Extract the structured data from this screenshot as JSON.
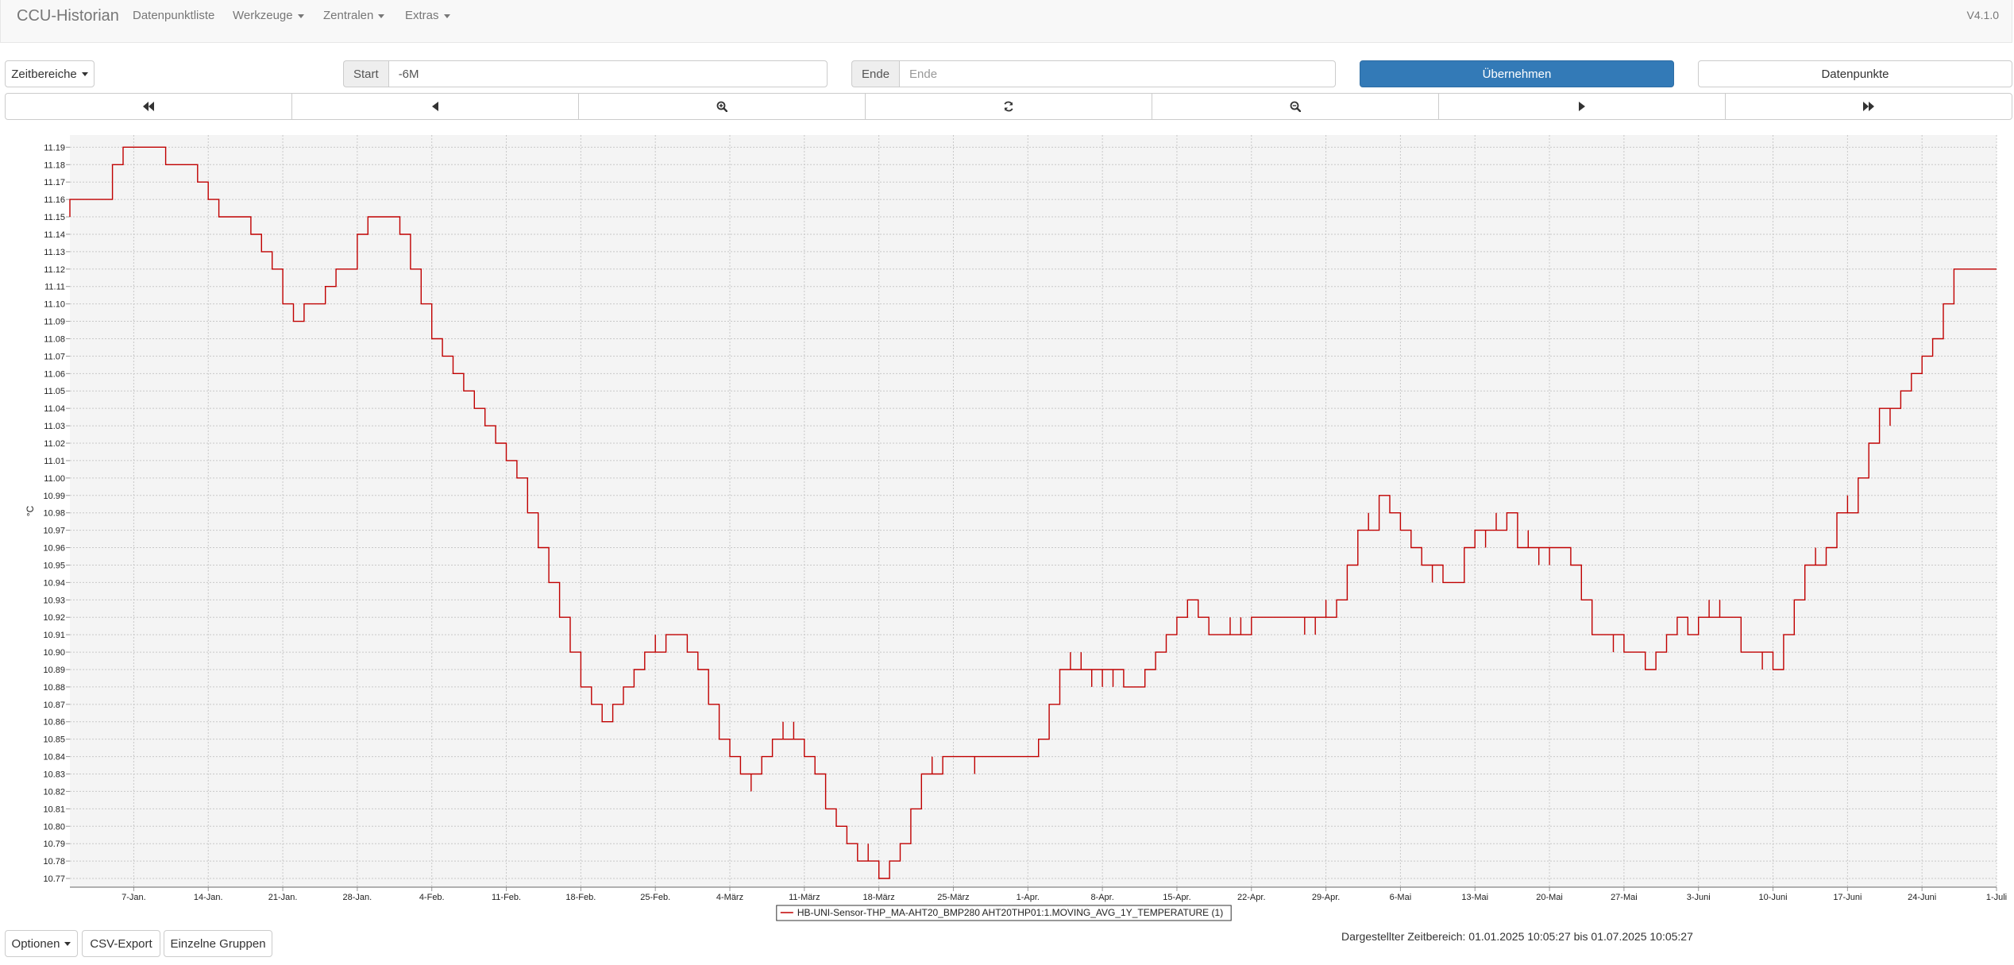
{
  "navbar": {
    "brand": "CCU-Historian",
    "items": [
      "Datenpunktliste",
      "Werkzeuge",
      "Zentralen",
      "Extras"
    ],
    "version": "V4.1.0"
  },
  "toolbar": {
    "zeitbereiche_label": "Zeitbereiche",
    "start_label": "Start",
    "start_value": "-6M",
    "ende_label": "Ende",
    "ende_placeholder": "Ende",
    "apply_label": "Übernehmen",
    "datapoints_label": "Datenpunkte"
  },
  "navigation_icons": [
    "fast-backward-icon",
    "step-backward-icon",
    "zoom-in-icon",
    "refresh-icon",
    "zoom-out-icon",
    "step-forward-icon",
    "fast-forward-icon"
  ],
  "colors": {
    "series": "#c00000",
    "primary": "#337ab7",
    "plot_background": "#f4f4f4"
  },
  "chart_data": {
    "type": "line",
    "step": true,
    "ylabel": "°C",
    "ylim": [
      10.765,
      11.197
    ],
    "yticks": [
      10.77,
      10.78,
      10.79,
      10.8,
      10.81,
      10.82,
      10.83,
      10.84,
      10.85,
      10.86,
      10.87,
      10.88,
      10.89,
      10.9,
      10.91,
      10.92,
      10.93,
      10.94,
      10.95,
      10.96,
      10.97,
      10.98,
      10.99,
      11.0,
      11.01,
      11.02,
      11.03,
      11.04,
      11.05,
      11.06,
      11.07,
      11.08,
      11.09,
      11.1,
      11.11,
      11.12,
      11.13,
      11.14,
      11.15,
      11.16,
      11.17,
      11.18,
      11.19
    ],
    "xlim": [
      "2025-01-01",
      "2025-07-01"
    ],
    "xticks": [
      {
        "date": "2025-01-07",
        "label": "7-Jan."
      },
      {
        "date": "2025-01-14",
        "label": "14-Jan."
      },
      {
        "date": "2025-01-21",
        "label": "21-Jan."
      },
      {
        "date": "2025-01-28",
        "label": "28-Jan."
      },
      {
        "date": "2025-02-04",
        "label": "4-Feb."
      },
      {
        "date": "2025-02-11",
        "label": "11-Feb."
      },
      {
        "date": "2025-02-18",
        "label": "18-Feb."
      },
      {
        "date": "2025-02-25",
        "label": "25-Feb."
      },
      {
        "date": "2025-03-04",
        "label": "4-März"
      },
      {
        "date": "2025-03-11",
        "label": "11-März"
      },
      {
        "date": "2025-03-18",
        "label": "18-März"
      },
      {
        "date": "2025-03-25",
        "label": "25-März"
      },
      {
        "date": "2025-04-01",
        "label": "1-Apr."
      },
      {
        "date": "2025-04-08",
        "label": "8-Apr."
      },
      {
        "date": "2025-04-15",
        "label": "15-Apr."
      },
      {
        "date": "2025-04-22",
        "label": "22-Apr."
      },
      {
        "date": "2025-04-29",
        "label": "29-Apr."
      },
      {
        "date": "2025-05-06",
        "label": "6-Mai"
      },
      {
        "date": "2025-05-13",
        "label": "13-Mai"
      },
      {
        "date": "2025-05-20",
        "label": "20-Mai"
      },
      {
        "date": "2025-05-27",
        "label": "27-Mai"
      },
      {
        "date": "2025-06-03",
        "label": "3-Juni"
      },
      {
        "date": "2025-06-10",
        "label": "10-Juni"
      },
      {
        "date": "2025-06-17",
        "label": "17-Juni"
      },
      {
        "date": "2025-06-24",
        "label": "24-Juni"
      },
      {
        "date": "2025-07-01",
        "label": "1-Juli"
      }
    ],
    "grid": true,
    "legend_position": "bottom-center",
    "series": [
      {
        "name": "HB-UNI-Sensor-THP_MA-AHT20_BMP280 AHT20THP01:1.MOVING_AVG_1Y_TEMPERATURE (1)",
        "points": [
          [
            "2025-01-01",
            11.15
          ],
          [
            "2025-01-01",
            11.16
          ],
          [
            "2025-01-05",
            11.17
          ],
          [
            "2025-01-05",
            11.18
          ],
          [
            "2025-01-06",
            11.19
          ],
          [
            "2025-01-10",
            11.18
          ],
          [
            "2025-01-13",
            11.17
          ],
          [
            "2025-01-14",
            11.16
          ],
          [
            "2025-01-15",
            11.15
          ],
          [
            "2025-01-18",
            11.14
          ],
          [
            "2025-01-19",
            11.13
          ],
          [
            "2025-01-20",
            11.12
          ],
          [
            "2025-01-21",
            11.11
          ],
          [
            "2025-01-21",
            11.1
          ],
          [
            "2025-01-22",
            11.09
          ],
          [
            "2025-01-23",
            11.1
          ],
          [
            "2025-01-25",
            11.11
          ],
          [
            "2025-01-26",
            11.12
          ],
          [
            "2025-01-28",
            11.13
          ],
          [
            "2025-01-28",
            11.14
          ],
          [
            "2025-01-29",
            11.15
          ],
          [
            "2025-02-01",
            11.14
          ],
          [
            "2025-02-02",
            11.13
          ],
          [
            "2025-02-02",
            11.12
          ],
          [
            "2025-02-03",
            11.11
          ],
          [
            "2025-02-03",
            11.1
          ],
          [
            "2025-02-04",
            11.09
          ],
          [
            "2025-02-04",
            11.08
          ],
          [
            "2025-02-05",
            11.07
          ],
          [
            "2025-02-06",
            11.06
          ],
          [
            "2025-02-07",
            11.05
          ],
          [
            "2025-02-08",
            11.04
          ],
          [
            "2025-02-09",
            11.03
          ],
          [
            "2025-02-10",
            11.02
          ],
          [
            "2025-02-11",
            11.01
          ],
          [
            "2025-02-12",
            11.0
          ],
          [
            "2025-02-13",
            10.99
          ],
          [
            "2025-02-13",
            10.98
          ],
          [
            "2025-02-14",
            10.97
          ],
          [
            "2025-02-14",
            10.96
          ],
          [
            "2025-02-15",
            10.95
          ],
          [
            "2025-02-15",
            10.94
          ],
          [
            "2025-02-16",
            10.93
          ],
          [
            "2025-02-16",
            10.92
          ],
          [
            "2025-02-17",
            10.91
          ],
          [
            "2025-02-17",
            10.9
          ],
          [
            "2025-02-18",
            10.89
          ],
          [
            "2025-02-18",
            10.88
          ],
          [
            "2025-02-19",
            10.87
          ],
          [
            "2025-02-20",
            10.86
          ],
          [
            "2025-02-21",
            10.87
          ],
          [
            "2025-02-22",
            10.88
          ],
          [
            "2025-02-23",
            10.89
          ],
          [
            "2025-02-24",
            10.9
          ],
          [
            "2025-02-25",
            10.91
          ],
          [
            "2025-02-25",
            10.9
          ],
          [
            "2025-02-26",
            10.91
          ],
          [
            "2025-02-28",
            10.9
          ],
          [
            "2025-03-01",
            10.89
          ],
          [
            "2025-03-02",
            10.88
          ],
          [
            "2025-03-02",
            10.87
          ],
          [
            "2025-03-03",
            10.86
          ],
          [
            "2025-03-03",
            10.85
          ],
          [
            "2025-03-04",
            10.84
          ],
          [
            "2025-03-05",
            10.83
          ],
          [
            "2025-03-06",
            10.82
          ],
          [
            "2025-03-06",
            10.83
          ],
          [
            "2025-03-07",
            10.84
          ],
          [
            "2025-03-08",
            10.85
          ],
          [
            "2025-03-09",
            10.86
          ],
          [
            "2025-03-09",
            10.85
          ],
          [
            "2025-03-10",
            10.86
          ],
          [
            "2025-03-10",
            10.85
          ],
          [
            "2025-03-11",
            10.84
          ],
          [
            "2025-03-12",
            10.83
          ],
          [
            "2025-03-13",
            10.82
          ],
          [
            "2025-03-13",
            10.81
          ],
          [
            "2025-03-14",
            10.8
          ],
          [
            "2025-03-15",
            10.79
          ],
          [
            "2025-03-16",
            10.78
          ],
          [
            "2025-03-17",
            10.79
          ],
          [
            "2025-03-17",
            10.78
          ],
          [
            "2025-03-18",
            10.77
          ],
          [
            "2025-03-19",
            10.78
          ],
          [
            "2025-03-20",
            10.79
          ],
          [
            "2025-03-21",
            10.8
          ],
          [
            "2025-03-21",
            10.81
          ],
          [
            "2025-03-22",
            10.82
          ],
          [
            "2025-03-22",
            10.83
          ],
          [
            "2025-03-23",
            10.84
          ],
          [
            "2025-03-23",
            10.83
          ],
          [
            "2025-03-24",
            10.84
          ],
          [
            "2025-03-27",
            10.83
          ],
          [
            "2025-03-27",
            10.84
          ],
          [
            "2025-04-02",
            10.85
          ],
          [
            "2025-04-03",
            10.86
          ],
          [
            "2025-04-03",
            10.87
          ],
          [
            "2025-04-04",
            10.88
          ],
          [
            "2025-04-04",
            10.89
          ],
          [
            "2025-04-05",
            10.9
          ],
          [
            "2025-04-05",
            10.89
          ],
          [
            "2025-04-06",
            10.9
          ],
          [
            "2025-04-06",
            10.89
          ],
          [
            "2025-04-07",
            10.88
          ],
          [
            "2025-04-07",
            10.89
          ],
          [
            "2025-04-08",
            10.88
          ],
          [
            "2025-04-08",
            10.89
          ],
          [
            "2025-04-09",
            10.88
          ],
          [
            "2025-04-09",
            10.89
          ],
          [
            "2025-04-10",
            10.88
          ],
          [
            "2025-04-12",
            10.89
          ],
          [
            "2025-04-13",
            10.9
          ],
          [
            "2025-04-14",
            10.91
          ],
          [
            "2025-04-15",
            10.92
          ],
          [
            "2025-04-16",
            10.93
          ],
          [
            "2025-04-17",
            10.92
          ],
          [
            "2025-04-18",
            10.91
          ],
          [
            "2025-04-20",
            10.92
          ],
          [
            "2025-04-20",
            10.91
          ],
          [
            "2025-04-21",
            10.92
          ],
          [
            "2025-04-21",
            10.91
          ],
          [
            "2025-04-22",
            10.92
          ],
          [
            "2025-04-27",
            10.91
          ],
          [
            "2025-04-27",
            10.92
          ],
          [
            "2025-04-28",
            10.91
          ],
          [
            "2025-04-28",
            10.92
          ],
          [
            "2025-04-29",
            10.93
          ],
          [
            "2025-04-29",
            10.92
          ],
          [
            "2025-04-30",
            10.93
          ],
          [
            "2025-05-01",
            10.94
          ],
          [
            "2025-05-01",
            10.95
          ],
          [
            "2025-05-02",
            10.96
          ],
          [
            "2025-05-02",
            10.97
          ],
          [
            "2025-05-03",
            10.98
          ],
          [
            "2025-05-03",
            10.97
          ],
          [
            "2025-05-04",
            10.99
          ],
          [
            "2025-05-05",
            10.98
          ],
          [
            "2025-05-06",
            10.97
          ],
          [
            "2025-05-07",
            10.96
          ],
          [
            "2025-05-08",
            10.95
          ],
          [
            "2025-05-09",
            10.94
          ],
          [
            "2025-05-09",
            10.95
          ],
          [
            "2025-05-10",
            10.94
          ],
          [
            "2025-05-12",
            10.95
          ],
          [
            "2025-05-12",
            10.96
          ],
          [
            "2025-05-13",
            10.97
          ],
          [
            "2025-05-14",
            10.96
          ],
          [
            "2025-05-14",
            10.97
          ],
          [
            "2025-05-15",
            10.98
          ],
          [
            "2025-05-15",
            10.97
          ],
          [
            "2025-05-16",
            10.98
          ],
          [
            "2025-05-17",
            10.97
          ],
          [
            "2025-05-17",
            10.96
          ],
          [
            "2025-05-18",
            10.97
          ],
          [
            "2025-05-18",
            10.96
          ],
          [
            "2025-05-19",
            10.95
          ],
          [
            "2025-05-19",
            10.96
          ],
          [
            "2025-05-20",
            10.95
          ],
          [
            "2025-05-20",
            10.96
          ],
          [
            "2025-05-22",
            10.95
          ],
          [
            "2025-05-23",
            10.94
          ],
          [
            "2025-05-23",
            10.93
          ],
          [
            "2025-05-24",
            10.92
          ],
          [
            "2025-05-24",
            10.91
          ],
          [
            "2025-05-26",
            10.9
          ],
          [
            "2025-05-26",
            10.91
          ],
          [
            "2025-05-27",
            10.9
          ],
          [
            "2025-05-29",
            10.89
          ],
          [
            "2025-05-30",
            10.9
          ],
          [
            "2025-05-31",
            10.91
          ],
          [
            "2025-06-01",
            10.92
          ],
          [
            "2025-06-02",
            10.91
          ],
          [
            "2025-06-03",
            10.92
          ],
          [
            "2025-06-04",
            10.93
          ],
          [
            "2025-06-04",
            10.92
          ],
          [
            "2025-06-05",
            10.93
          ],
          [
            "2025-06-05",
            10.92
          ],
          [
            "2025-06-07",
            10.91
          ],
          [
            "2025-06-07",
            10.9
          ],
          [
            "2025-06-09",
            10.89
          ],
          [
            "2025-06-09",
            10.9
          ],
          [
            "2025-06-10",
            10.89
          ],
          [
            "2025-06-11",
            10.9
          ],
          [
            "2025-06-11",
            10.91
          ],
          [
            "2025-06-12",
            10.92
          ],
          [
            "2025-06-12",
            10.93
          ],
          [
            "2025-06-13",
            10.94
          ],
          [
            "2025-06-13",
            10.95
          ],
          [
            "2025-06-14",
            10.96
          ],
          [
            "2025-06-14",
            10.95
          ],
          [
            "2025-06-15",
            10.96
          ],
          [
            "2025-06-16",
            10.97
          ],
          [
            "2025-06-16",
            10.98
          ],
          [
            "2025-06-17",
            10.99
          ],
          [
            "2025-06-17",
            10.98
          ],
          [
            "2025-06-18",
            10.99
          ],
          [
            "2025-06-18",
            11.0
          ],
          [
            "2025-06-19",
            11.01
          ],
          [
            "2025-06-19",
            11.02
          ],
          [
            "2025-06-20",
            11.03
          ],
          [
            "2025-06-20",
            11.04
          ],
          [
            "2025-06-21",
            11.03
          ],
          [
            "2025-06-21",
            11.04
          ],
          [
            "2025-06-22",
            11.05
          ],
          [
            "2025-06-23",
            11.06
          ],
          [
            "2025-06-24",
            11.07
          ],
          [
            "2025-06-25",
            11.08
          ],
          [
            "2025-06-26",
            11.09
          ],
          [
            "2025-06-26",
            11.1
          ],
          [
            "2025-06-27",
            11.11
          ],
          [
            "2025-06-27",
            11.12
          ],
          [
            "2025-07-01",
            11.12
          ]
        ]
      }
    ]
  },
  "footer": {
    "options_label": "Optionen",
    "csv_label": "CSV-Export",
    "groups_label": "Einzelne Gruppen",
    "range_text": "Dargestellter Zeitbereich: 01.01.2025 10:05:27 bis 01.07.2025 10:05:27"
  }
}
